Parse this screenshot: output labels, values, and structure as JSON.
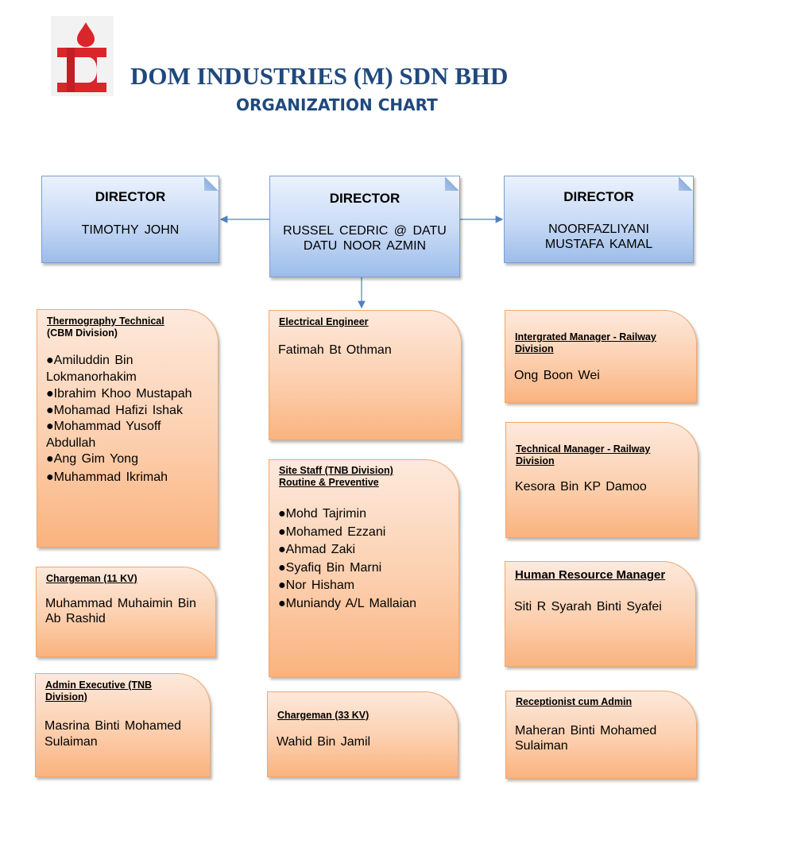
{
  "header": {
    "company": "DOM INDUSTRIES (M) SDN BHD",
    "subtitle": "ORGANIZATION CHART"
  },
  "directors": [
    {
      "title": "DIRECTOR",
      "name": "TIMOTHY  JOHN"
    },
    {
      "title": "DIRECTOR",
      "name": "RUSSEL  CEDRIC @ DATU  DATU  NOOR  AZMIN"
    },
    {
      "title": "DIRECTOR",
      "name": "NOORFAZLIYANI MUSTAFA  KAMAL"
    }
  ],
  "left_boxes": [
    {
      "heading": "Thermography Technical",
      "subheading": "(CBM  Division)",
      "members": [
        "●Amiluddin  Bin  Lokmanorhakim",
        "●Ibrahim Khoo Mustapah",
        "●Mohamad  Hafizi  Ishak",
        "●Mohammad  Yusoff Abdullah",
        "●Ang Gim Yong",
        "●Muhammad  Ikrimah"
      ]
    },
    {
      "heading": "Chargeman (11 KV)",
      "person": "Muhammad  Muhaimin Bin Ab Rashid"
    },
    {
      "heading": "Admin Executive (TNB Division)",
      "person": "Masrina Binti Mohamed Sulaiman"
    }
  ],
  "middle_boxes": [
    {
      "heading": "Electrical Engineer",
      "person": "Fatimah  Bt Othman"
    },
    {
      "heading": "Site Staff (TNB Division)",
      "subheading": "Routine & Preventive",
      "members": [
        "●Mohd Tajrimin",
        "●Mohamed  Ezzani",
        "●Ahmad  Zaki",
        "●Syafiq Bin Marni",
        "●Nor Hisham",
        "●Muniandy A/L Mallaian"
      ]
    },
    {
      "heading": "Chargeman (33 KV)",
      "person": "Wahid Bin Jamil"
    }
  ],
  "right_boxes": [
    {
      "heading": "Intergrated Manager - Railway Division",
      "person": "Ong Boon Wei"
    },
    {
      "heading": "Technical Manager - Railway Division",
      "person": "Kesora Bin KP Damoo"
    },
    {
      "heading": "Human Resource Manager",
      "person": "Siti R Syarah Binti Syafei"
    },
    {
      "heading": "Receptionist cum Admin",
      "person": "Maheran Binti Mohamed Sulaiman"
    }
  ],
  "colors": {
    "title_blue": "#1f497d",
    "logo_red": "#d9262b",
    "director_fill": "#c6d9f5",
    "staff_fill": "#fccfae",
    "connector": "#4f81bd"
  }
}
